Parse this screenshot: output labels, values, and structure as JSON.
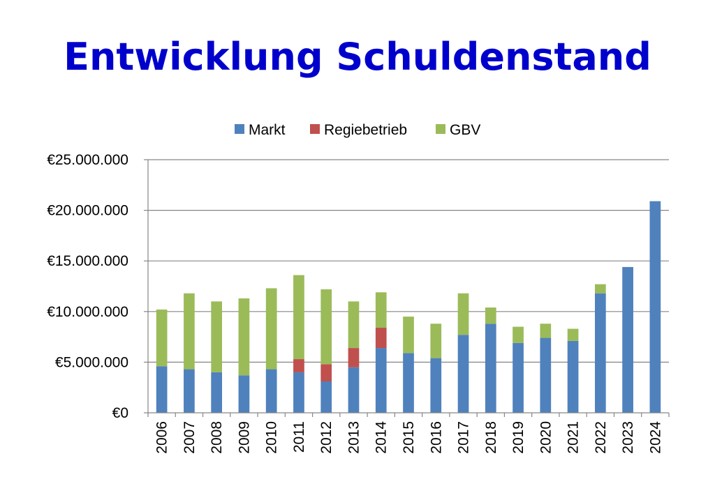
{
  "title": "Entwicklung Schuldenstand",
  "chart_data": {
    "type": "bar",
    "stacked": true,
    "title": "Entwicklung Schuldenstand",
    "xlabel": "",
    "ylabel": "",
    "ylim": [
      0,
      25000000
    ],
    "yticks": [
      0,
      5000000,
      10000000,
      15000000,
      20000000,
      25000000
    ],
    "ytick_labels": [
      "€0",
      "€5.000.000",
      "€10.000.000",
      "€15.000.000",
      "€20.000.000",
      "€25.000.000"
    ],
    "grid": true,
    "legend_position": "top",
    "categories": [
      "2006",
      "2007",
      "2008",
      "2009",
      "2010",
      "2011",
      "2012",
      "2013",
      "2014",
      "2015",
      "2016",
      "2017",
      "2018",
      "2019",
      "2020",
      "2021",
      "2022",
      "2023",
      "2024"
    ],
    "series": [
      {
        "name": "Markt",
        "color": "#4f81bd",
        "values": [
          4600000,
          4300000,
          4000000,
          3700000,
          4300000,
          4000000,
          3100000,
          4500000,
          6400000,
          5900000,
          5400000,
          7700000,
          8800000,
          6900000,
          7400000,
          7100000,
          11800000,
          14400000,
          20900000
        ]
      },
      {
        "name": "Regiebetrieb",
        "color": "#c0504d",
        "values": [
          0,
          0,
          0,
          0,
          0,
          1300000,
          1700000,
          1900000,
          2000000,
          0,
          0,
          0,
          0,
          0,
          0,
          0,
          0,
          0,
          0
        ]
      },
      {
        "name": "GBV",
        "color": "#9bbb59",
        "values": [
          5600000,
          7500000,
          7000000,
          7600000,
          8000000,
          8300000,
          7400000,
          4600000,
          3500000,
          3600000,
          3400000,
          4100000,
          1600000,
          1600000,
          1400000,
          1200000,
          900000,
          0,
          0
        ]
      }
    ]
  }
}
